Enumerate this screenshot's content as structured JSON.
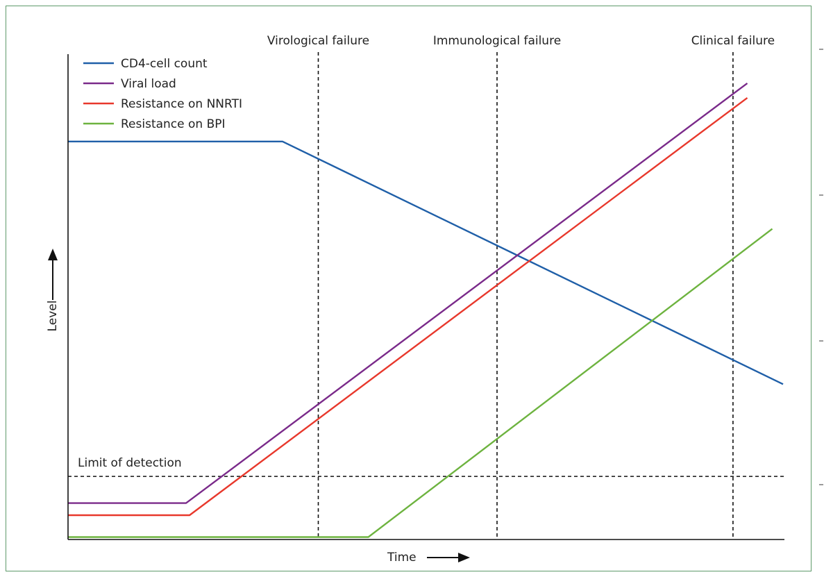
{
  "chart_data": {
    "type": "line",
    "title": "",
    "xlabel": "Time",
    "ylabel": "Level",
    "xlim": [
      0,
      100
    ],
    "ylim": [
      0,
      100
    ],
    "grid": false,
    "legend_position": "top-left",
    "series": [
      {
        "name": "CD4-cell count",
        "color": "#1f5fa8",
        "points": [
          [
            0,
            82
          ],
          [
            30,
            82
          ],
          [
            100,
            32
          ]
        ]
      },
      {
        "name": "Viral load",
        "color": "#7a2a8a",
        "points": [
          [
            0,
            7.5
          ],
          [
            16.5,
            7.5
          ],
          [
            95,
            94
          ]
        ]
      },
      {
        "name": "Resistance on NNRTI",
        "color": "#e8382c",
        "points": [
          [
            0,
            5
          ],
          [
            17,
            5
          ],
          [
            95,
            91
          ]
        ]
      },
      {
        "name": "Resistance on BPI",
        "color": "#6db33f",
        "points": [
          [
            0,
            0.5
          ],
          [
            42,
            0.5
          ],
          [
            98.5,
            64
          ]
        ]
      }
    ],
    "vertical_markers": [
      {
        "label": "Virological failure",
        "x": 35
      },
      {
        "label": "Immunological failure",
        "x": 60
      },
      {
        "label": "Clinical failure",
        "x": 93
      }
    ],
    "horizontal_markers": [
      {
        "label": "Limit of detection",
        "y": 13
      }
    ]
  }
}
